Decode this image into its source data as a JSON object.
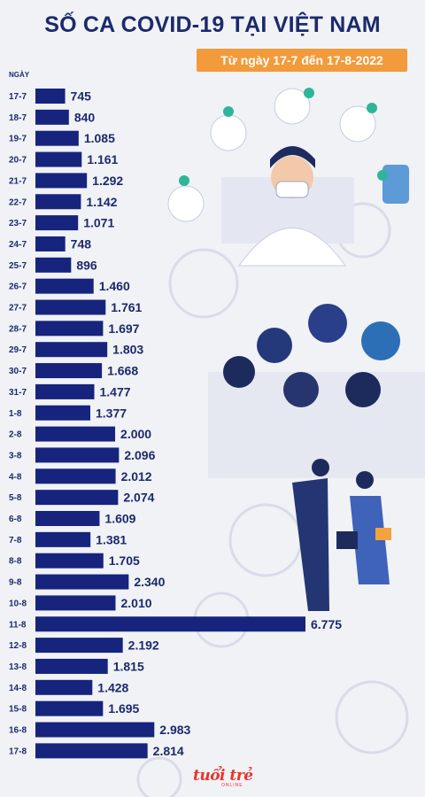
{
  "header": {
    "title": "SỐ CA COVID-19 TẠI VIỆT NAM",
    "subtitle": "Từ ngày 17-7 đến 17-8-2022"
  },
  "axis_label": "NGÀY",
  "logo": {
    "text": "tuổi trẻ",
    "sub": "ONLINE"
  },
  "colors": {
    "bar": "#16247e",
    "title": "#1b2a6b",
    "badge": "#f39a3a",
    "logo": "#e8332b"
  },
  "chart_data": {
    "type": "bar",
    "orientation": "horizontal",
    "title": "SỐ CA COVID-19 TẠI VIỆT NAM",
    "subtitle": "Từ ngày 17-7 đến 17-8-2022",
    "xlabel": "",
    "ylabel": "NGÀY",
    "categories": [
      "17-7",
      "18-7",
      "19-7",
      "20-7",
      "21-7",
      "22-7",
      "23-7",
      "24-7",
      "25-7",
      "26-7",
      "27-7",
      "28-7",
      "29-7",
      "30-7",
      "31-7",
      "1-8",
      "2-8",
      "3-8",
      "4-8",
      "5-8",
      "6-8",
      "7-8",
      "8-8",
      "9-8",
      "10-8",
      "11-8",
      "12-8",
      "13-8",
      "14-8",
      "15-8",
      "16-8",
      "17-8"
    ],
    "values": [
      745,
      840,
      1085,
      1161,
      1292,
      1142,
      1071,
      748,
      896,
      1460,
      1761,
      1697,
      1803,
      1668,
      1477,
      1377,
      2000,
      2096,
      2012,
      2074,
      1609,
      1381,
      1705,
      2340,
      2010,
      6775,
      2192,
      1815,
      1428,
      1695,
      2983,
      2814
    ],
    "value_labels": [
      "745",
      "840",
      "1.085",
      "1.161",
      "1.292",
      "1.142",
      "1.071",
      "748",
      "896",
      "1.460",
      "1.761",
      "1.697",
      "1.803",
      "1.668",
      "1.477",
      "1.377",
      "2.000",
      "2.096",
      "2.012",
      "2.074",
      "1.609",
      "1.381",
      "1.705",
      "2.340",
      "2.010",
      "6.775",
      "2.192",
      "1.815",
      "1.428",
      "1.695",
      "2.983",
      "2.814"
    ],
    "grid": false,
    "legend": "none"
  }
}
